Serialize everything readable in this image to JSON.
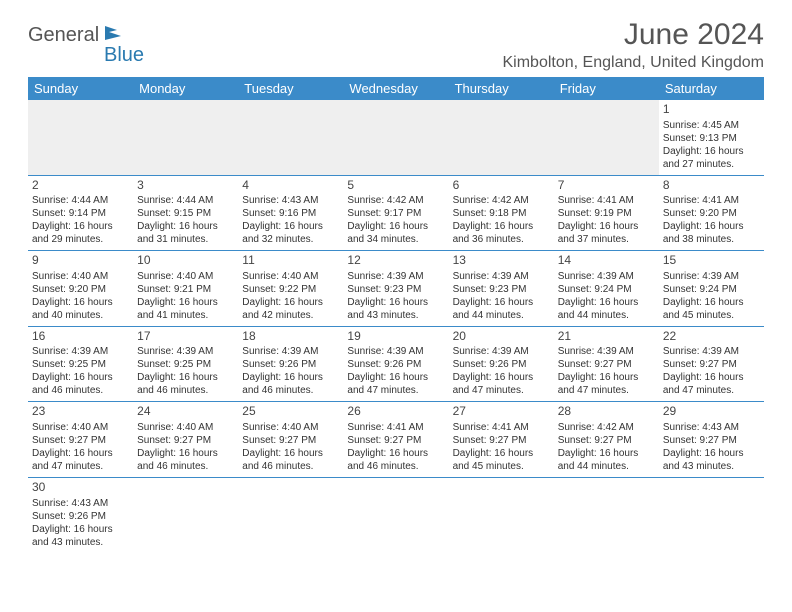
{
  "logo": {
    "text1": "General",
    "text2": "Blue"
  },
  "title": "June 2024",
  "location": "Kimbolton, England, United Kingdom",
  "colors": {
    "header_bg": "#3b8bc9",
    "header_text": "#ffffff",
    "border": "#3b8bc9",
    "empty_bg": "#efefef",
    "title_color": "#555555",
    "body_bg": "#ffffff"
  },
  "days_of_week": [
    "Sunday",
    "Monday",
    "Tuesday",
    "Wednesday",
    "Thursday",
    "Friday",
    "Saturday"
  ],
  "weeks": [
    [
      null,
      null,
      null,
      null,
      null,
      null,
      {
        "n": "1",
        "sr": "Sunrise: 4:45 AM",
        "ss": "Sunset: 9:13 PM",
        "dl1": "Daylight: 16 hours",
        "dl2": "and 27 minutes."
      }
    ],
    [
      {
        "n": "2",
        "sr": "Sunrise: 4:44 AM",
        "ss": "Sunset: 9:14 PM",
        "dl1": "Daylight: 16 hours",
        "dl2": "and 29 minutes."
      },
      {
        "n": "3",
        "sr": "Sunrise: 4:44 AM",
        "ss": "Sunset: 9:15 PM",
        "dl1": "Daylight: 16 hours",
        "dl2": "and 31 minutes."
      },
      {
        "n": "4",
        "sr": "Sunrise: 4:43 AM",
        "ss": "Sunset: 9:16 PM",
        "dl1": "Daylight: 16 hours",
        "dl2": "and 32 minutes."
      },
      {
        "n": "5",
        "sr": "Sunrise: 4:42 AM",
        "ss": "Sunset: 9:17 PM",
        "dl1": "Daylight: 16 hours",
        "dl2": "and 34 minutes."
      },
      {
        "n": "6",
        "sr": "Sunrise: 4:42 AM",
        "ss": "Sunset: 9:18 PM",
        "dl1": "Daylight: 16 hours",
        "dl2": "and 36 minutes."
      },
      {
        "n": "7",
        "sr": "Sunrise: 4:41 AM",
        "ss": "Sunset: 9:19 PM",
        "dl1": "Daylight: 16 hours",
        "dl2": "and 37 minutes."
      },
      {
        "n": "8",
        "sr": "Sunrise: 4:41 AM",
        "ss": "Sunset: 9:20 PM",
        "dl1": "Daylight: 16 hours",
        "dl2": "and 38 minutes."
      }
    ],
    [
      {
        "n": "9",
        "sr": "Sunrise: 4:40 AM",
        "ss": "Sunset: 9:20 PM",
        "dl1": "Daylight: 16 hours",
        "dl2": "and 40 minutes."
      },
      {
        "n": "10",
        "sr": "Sunrise: 4:40 AM",
        "ss": "Sunset: 9:21 PM",
        "dl1": "Daylight: 16 hours",
        "dl2": "and 41 minutes."
      },
      {
        "n": "11",
        "sr": "Sunrise: 4:40 AM",
        "ss": "Sunset: 9:22 PM",
        "dl1": "Daylight: 16 hours",
        "dl2": "and 42 minutes."
      },
      {
        "n": "12",
        "sr": "Sunrise: 4:39 AM",
        "ss": "Sunset: 9:23 PM",
        "dl1": "Daylight: 16 hours",
        "dl2": "and 43 minutes."
      },
      {
        "n": "13",
        "sr": "Sunrise: 4:39 AM",
        "ss": "Sunset: 9:23 PM",
        "dl1": "Daylight: 16 hours",
        "dl2": "and 44 minutes."
      },
      {
        "n": "14",
        "sr": "Sunrise: 4:39 AM",
        "ss": "Sunset: 9:24 PM",
        "dl1": "Daylight: 16 hours",
        "dl2": "and 44 minutes."
      },
      {
        "n": "15",
        "sr": "Sunrise: 4:39 AM",
        "ss": "Sunset: 9:24 PM",
        "dl1": "Daylight: 16 hours",
        "dl2": "and 45 minutes."
      }
    ],
    [
      {
        "n": "16",
        "sr": "Sunrise: 4:39 AM",
        "ss": "Sunset: 9:25 PM",
        "dl1": "Daylight: 16 hours",
        "dl2": "and 46 minutes."
      },
      {
        "n": "17",
        "sr": "Sunrise: 4:39 AM",
        "ss": "Sunset: 9:25 PM",
        "dl1": "Daylight: 16 hours",
        "dl2": "and 46 minutes."
      },
      {
        "n": "18",
        "sr": "Sunrise: 4:39 AM",
        "ss": "Sunset: 9:26 PM",
        "dl1": "Daylight: 16 hours",
        "dl2": "and 46 minutes."
      },
      {
        "n": "19",
        "sr": "Sunrise: 4:39 AM",
        "ss": "Sunset: 9:26 PM",
        "dl1": "Daylight: 16 hours",
        "dl2": "and 47 minutes."
      },
      {
        "n": "20",
        "sr": "Sunrise: 4:39 AM",
        "ss": "Sunset: 9:26 PM",
        "dl1": "Daylight: 16 hours",
        "dl2": "and 47 minutes."
      },
      {
        "n": "21",
        "sr": "Sunrise: 4:39 AM",
        "ss": "Sunset: 9:27 PM",
        "dl1": "Daylight: 16 hours",
        "dl2": "and 47 minutes."
      },
      {
        "n": "22",
        "sr": "Sunrise: 4:39 AM",
        "ss": "Sunset: 9:27 PM",
        "dl1": "Daylight: 16 hours",
        "dl2": "and 47 minutes."
      }
    ],
    [
      {
        "n": "23",
        "sr": "Sunrise: 4:40 AM",
        "ss": "Sunset: 9:27 PM",
        "dl1": "Daylight: 16 hours",
        "dl2": "and 47 minutes."
      },
      {
        "n": "24",
        "sr": "Sunrise: 4:40 AM",
        "ss": "Sunset: 9:27 PM",
        "dl1": "Daylight: 16 hours",
        "dl2": "and 46 minutes."
      },
      {
        "n": "25",
        "sr": "Sunrise: 4:40 AM",
        "ss": "Sunset: 9:27 PM",
        "dl1": "Daylight: 16 hours",
        "dl2": "and 46 minutes."
      },
      {
        "n": "26",
        "sr": "Sunrise: 4:41 AM",
        "ss": "Sunset: 9:27 PM",
        "dl1": "Daylight: 16 hours",
        "dl2": "and 46 minutes."
      },
      {
        "n": "27",
        "sr": "Sunrise: 4:41 AM",
        "ss": "Sunset: 9:27 PM",
        "dl1": "Daylight: 16 hours",
        "dl2": "and 45 minutes."
      },
      {
        "n": "28",
        "sr": "Sunrise: 4:42 AM",
        "ss": "Sunset: 9:27 PM",
        "dl1": "Daylight: 16 hours",
        "dl2": "and 44 minutes."
      },
      {
        "n": "29",
        "sr": "Sunrise: 4:43 AM",
        "ss": "Sunset: 9:27 PM",
        "dl1": "Daylight: 16 hours",
        "dl2": "and 43 minutes."
      }
    ],
    [
      {
        "n": "30",
        "sr": "Sunrise: 4:43 AM",
        "ss": "Sunset: 9:26 PM",
        "dl1": "Daylight: 16 hours",
        "dl2": "and 43 minutes."
      },
      null,
      null,
      null,
      null,
      null,
      null
    ]
  ]
}
